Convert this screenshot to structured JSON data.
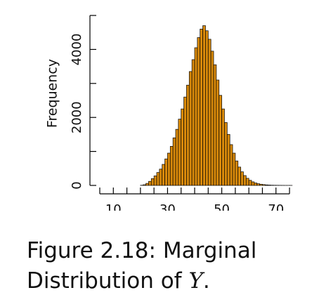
{
  "chart_data": {
    "type": "bar",
    "title": "",
    "xlabel": "",
    "ylabel": "Frequency",
    "xlim": [
      5,
      75
    ],
    "ylim": [
      0,
      5000
    ],
    "xticks": [
      10,
      30,
      50,
      70
    ],
    "xtick_labels": [
      "10",
      "30",
      "50",
      "70"
    ],
    "yticks": [
      0,
      2000,
      4000
    ],
    "ytick_labels": [
      "0",
      "2000",
      "4000"
    ],
    "grid": false,
    "legend": "none",
    "bin_width": 1,
    "bin_starts": [
      20,
      21,
      22,
      23,
      24,
      25,
      26,
      27,
      28,
      29,
      30,
      31,
      32,
      33,
      34,
      35,
      36,
      37,
      38,
      39,
      40,
      41,
      42,
      43,
      44,
      45,
      46,
      47,
      48,
      49,
      50,
      51,
      52,
      53,
      54,
      55,
      56,
      57,
      58,
      59,
      60,
      61,
      62,
      63,
      64,
      65,
      66,
      67,
      68,
      69,
      70,
      71,
      72,
      73,
      74,
      75
    ],
    "values": [
      5,
      20,
      60,
      120,
      200,
      280,
      380,
      480,
      620,
      780,
      950,
      1150,
      1400,
      1650,
      1950,
      2250,
      2600,
      2950,
      3350,
      3700,
      4050,
      4350,
      4600,
      4700,
      4550,
      4300,
      3950,
      3550,
      3100,
      2650,
      2250,
      1850,
      1500,
      1200,
      950,
      720,
      540,
      400,
      290,
      210,
      150,
      105,
      72,
      50,
      35,
      24,
      16,
      11,
      7,
      5,
      4,
      3,
      2,
      1,
      1,
      1
    ],
    "bar_color": "#d98a0b",
    "bar_edge_color": "#000000"
  },
  "caption": {
    "text": "Figure 2.18: Marginal Distribution of ",
    "variable": "Y",
    "suffix": "."
  }
}
